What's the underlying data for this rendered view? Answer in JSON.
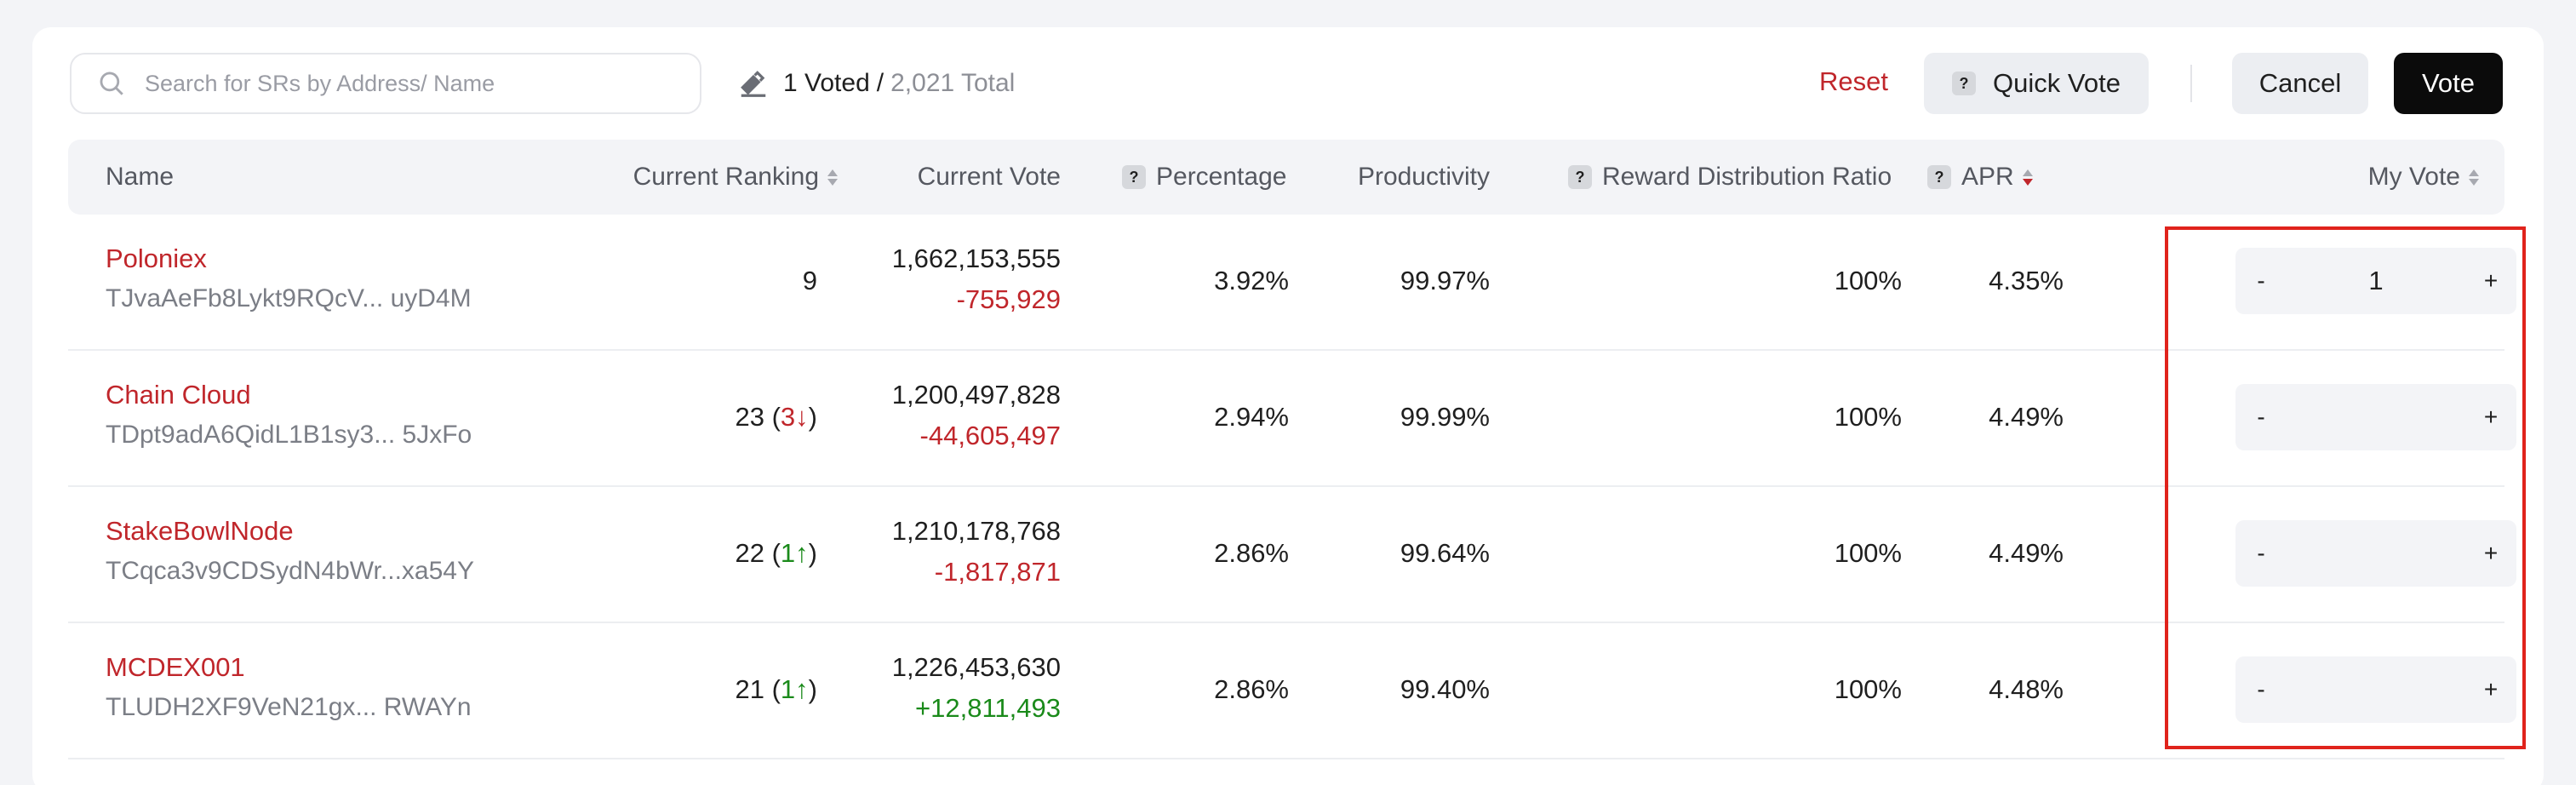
{
  "search": {
    "placeholder": "Search for SRs by Address/ Name"
  },
  "summary": {
    "voted": "1 Voted",
    "separator": "/",
    "total": "2,021 Total"
  },
  "toolbar": {
    "reset": "Reset",
    "quick_vote": "Quick Vote",
    "cancel": "Cancel",
    "vote": "Vote"
  },
  "columns": {
    "name": "Name",
    "current_ranking": "Current Ranking",
    "current_vote": "Current Vote",
    "percentage": "Percentage",
    "productivity": "Productivity",
    "reward_ratio": "Reward Distribution Ratio",
    "apr": "APR",
    "my_vote": "My Vote"
  },
  "help_badge": "?",
  "rows": [
    {
      "name": "Poloniex",
      "address": "TJvaAeFb8Lykt9RQcV... uyD4M",
      "ranking": "9",
      "rank_change": "",
      "rank_dir": "",
      "vote": "1,662,153,555",
      "vote_change": "-755,929",
      "change_dir": "neg",
      "percentage": "3.92%",
      "productivity": "99.97%",
      "reward_ratio": "100%",
      "apr": "4.35%",
      "my_vote": "1"
    },
    {
      "name": "Chain Cloud",
      "address": "TDpt9adA6QidL1B1sy3... 5JxFo",
      "ranking": "23",
      "rank_change": "3↓",
      "rank_dir": "down",
      "vote": "1,200,497,828",
      "vote_change": "-44,605,497",
      "change_dir": "neg",
      "percentage": "2.94%",
      "productivity": "99.99%",
      "reward_ratio": "100%",
      "apr": "4.49%",
      "my_vote": ""
    },
    {
      "name": "StakeBowlNode",
      "address": "TCqca3v9CDSydN4bWr...xa54Y",
      "ranking": "22",
      "rank_change": "1↑",
      "rank_dir": "up",
      "vote": "1,210,178,768",
      "vote_change": "-1,817,871",
      "change_dir": "neg",
      "percentage": "2.86%",
      "productivity": "99.64%",
      "reward_ratio": "100%",
      "apr": "4.49%",
      "my_vote": ""
    },
    {
      "name": "MCDEX001",
      "address": "TLUDH2XF9VeN21gx... RWAYn",
      "ranking": "21",
      "rank_change": "1↑",
      "rank_dir": "up",
      "vote": "1,226,453,630",
      "vote_change": "+12,811,493",
      "change_dir": "pos",
      "percentage": "2.86%",
      "productivity": "99.40%",
      "reward_ratio": "100%",
      "apr": "4.48%",
      "my_vote": ""
    }
  ],
  "stepper": {
    "minus": "-",
    "plus": "+"
  },
  "colors": {
    "accent_red": "#c0262b",
    "positive_green": "#1a8a1a",
    "highlight_border": "#e0231c",
    "primary_button": "#0b0b0b"
  }
}
